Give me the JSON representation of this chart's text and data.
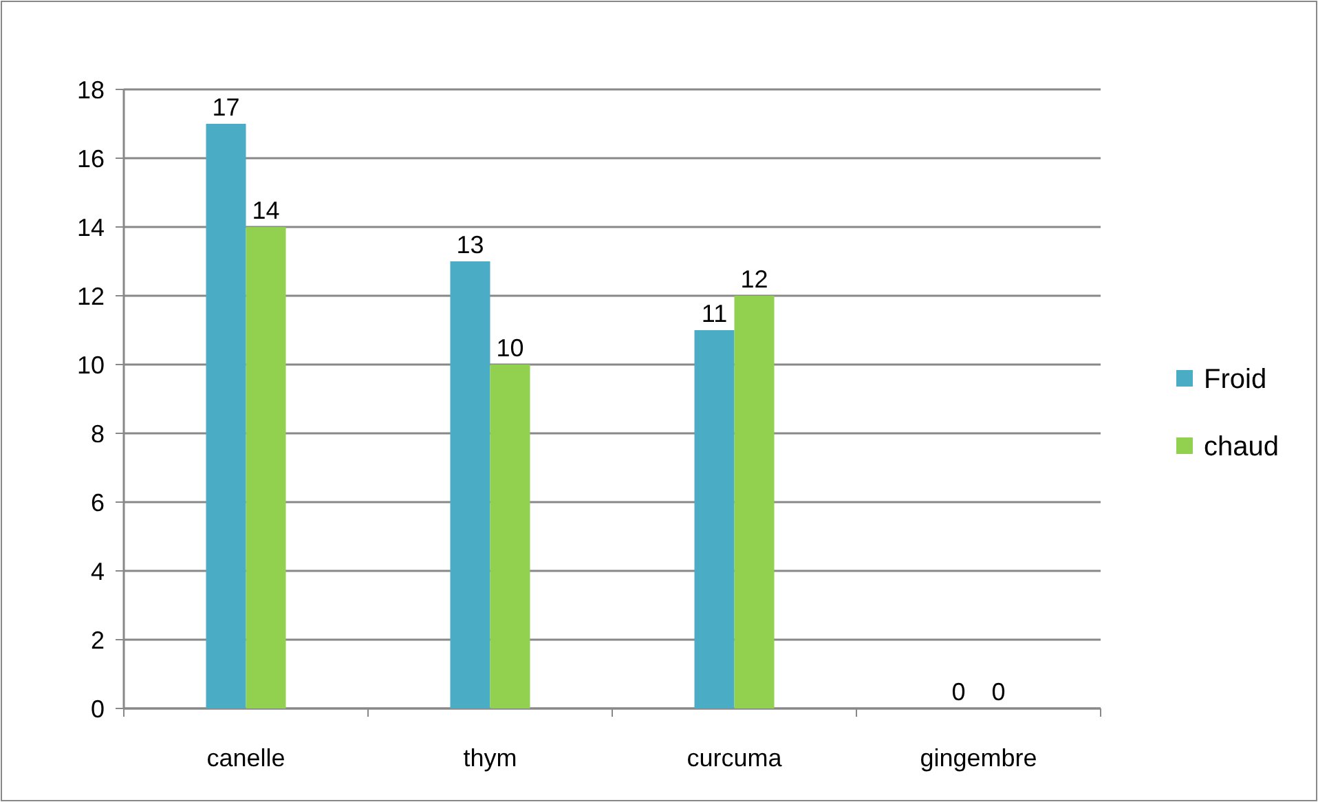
{
  "chart_data": {
    "type": "bar",
    "categories": [
      "canelle",
      "thym",
      "curcuma",
      "gingembre"
    ],
    "series": [
      {
        "name": "Froid",
        "color": "#4bacc6",
        "values": [
          17,
          13,
          11,
          0
        ]
      },
      {
        "name": "chaud",
        "color": "#92d050",
        "values": [
          14,
          10,
          12,
          0
        ]
      }
    ],
    "ylim": [
      0,
      18
    ],
    "yticks": [
      0,
      2,
      4,
      6,
      8,
      10,
      12,
      14,
      16,
      18
    ],
    "grid": "y",
    "legend": "right",
    "data_labels": true
  }
}
